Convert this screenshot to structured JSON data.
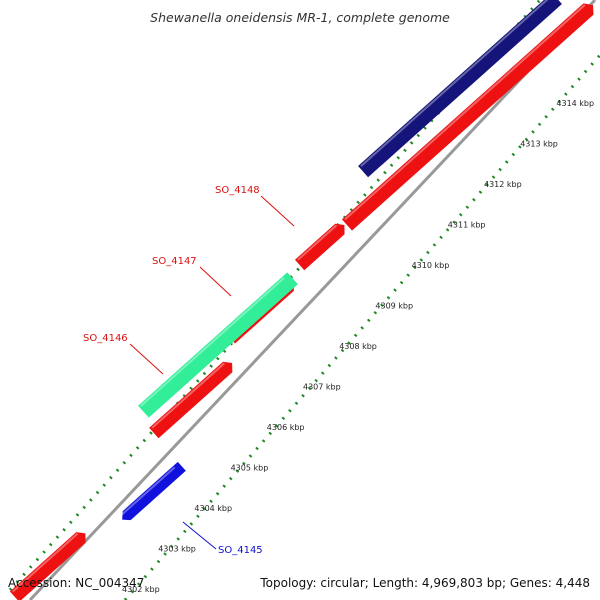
{
  "title": "Shewanella oneidensis MR-1, complete genome",
  "footer": {
    "accession": "Accession: NC_004347",
    "summary": "Topology: circular; Length: 4,969,803 bp; Genes: 4,448"
  },
  "ruler_ticks": [
    {
      "kbp": 4302,
      "label": "4302 kbp"
    },
    {
      "kbp": 4303,
      "label": "4303 kbp"
    },
    {
      "kbp": 4304,
      "label": "4304 kbp"
    },
    {
      "kbp": 4305,
      "label": "4305 kbp"
    },
    {
      "kbp": 4306,
      "label": "4306 kbp"
    },
    {
      "kbp": 4307,
      "label": "4307 kbp"
    },
    {
      "kbp": 4308,
      "label": "4308 kbp"
    },
    {
      "kbp": 4309,
      "label": "4309 kbp"
    },
    {
      "kbp": 4310,
      "label": "4310 kbp"
    },
    {
      "kbp": 4311,
      "label": "4311 kbp"
    },
    {
      "kbp": 4312,
      "label": "4312 kbp"
    },
    {
      "kbp": 4313,
      "label": "4313 kbp"
    },
    {
      "kbp": 4314,
      "label": "4314 kbp"
    }
  ],
  "gene_labels": [
    {
      "name": "SO_4148",
      "color": "#dd1111"
    },
    {
      "name": "SO_4147",
      "color": "#dd1111"
    },
    {
      "name": "SO_4146",
      "color": "#dd1111"
    },
    {
      "name": "SO_4145",
      "color": "#1111cc"
    }
  ],
  "colors": {
    "cds": "#ee1111",
    "rrna_dark": "#14147a",
    "gene_green": "#33ee99",
    "gene_blue": "#1111dd",
    "backbone": "#999999",
    "ticks": "#228822"
  }
}
